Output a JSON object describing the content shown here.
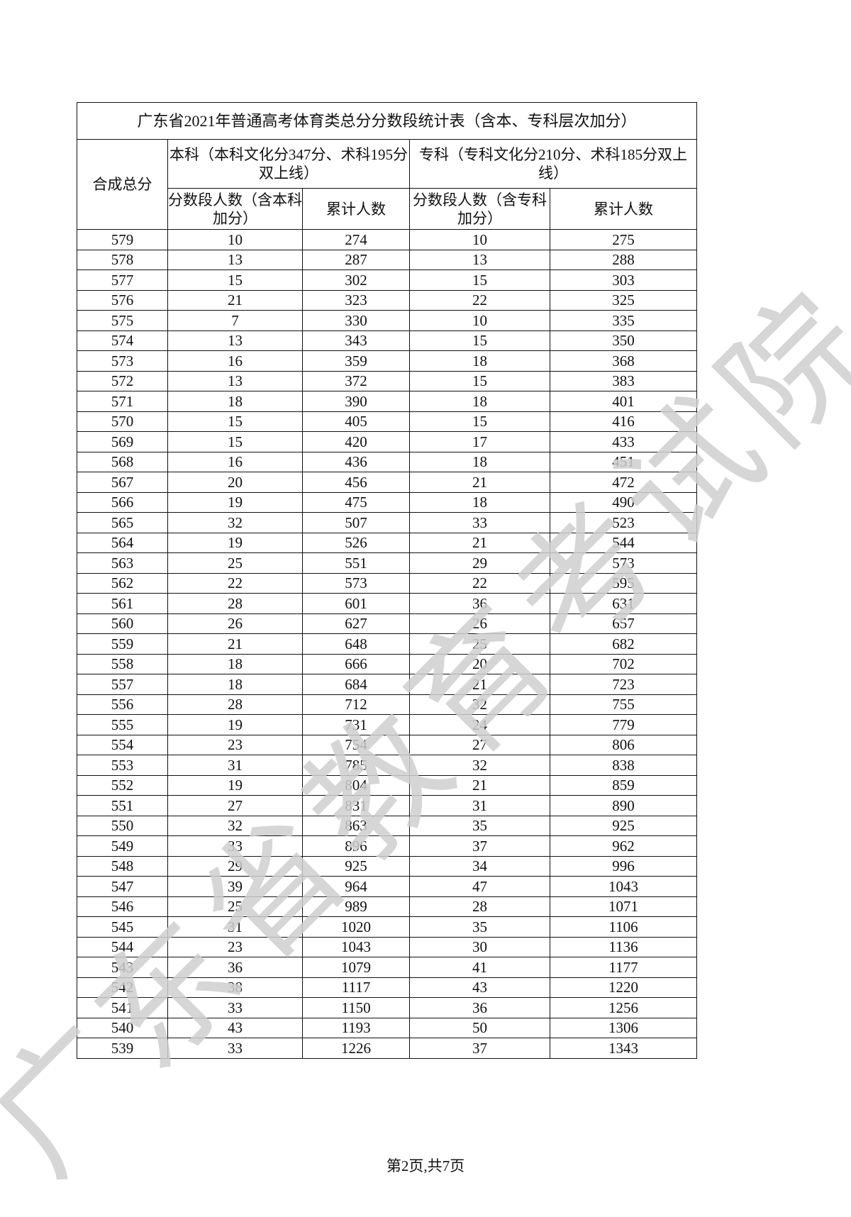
{
  "watermark": "广东省教育考试院",
  "table": {
    "title": "广东省2021年普通高考体育类总分分数段统计表（含本、专科层次加分）",
    "col_score": "合成总分",
    "group_benke": "本科（本科文化分347分、术科195分双上线）",
    "group_zhuanke": "专科（专科文化分210分、术科185分双上线）",
    "benke_count": "分数段人数（含本科加分）",
    "benke_cumulative": "累计人数",
    "zhuanke_count": "分数段人数（含专科加分）",
    "zhuanke_cumulative": "累计人数",
    "rows": [
      [
        579,
        10,
        274,
        10,
        275
      ],
      [
        578,
        13,
        287,
        13,
        288
      ],
      [
        577,
        15,
        302,
        15,
        303
      ],
      [
        576,
        21,
        323,
        22,
        325
      ],
      [
        575,
        7,
        330,
        10,
        335
      ],
      [
        574,
        13,
        343,
        15,
        350
      ],
      [
        573,
        16,
        359,
        18,
        368
      ],
      [
        572,
        13,
        372,
        15,
        383
      ],
      [
        571,
        18,
        390,
        18,
        401
      ],
      [
        570,
        15,
        405,
        15,
        416
      ],
      [
        569,
        15,
        420,
        17,
        433
      ],
      [
        568,
        16,
        436,
        18,
        451
      ],
      [
        567,
        20,
        456,
        21,
        472
      ],
      [
        566,
        19,
        475,
        18,
        490
      ],
      [
        565,
        32,
        507,
        33,
        523
      ],
      [
        564,
        19,
        526,
        21,
        544
      ],
      [
        563,
        25,
        551,
        29,
        573
      ],
      [
        562,
        22,
        573,
        22,
        595
      ],
      [
        561,
        28,
        601,
        36,
        631
      ],
      [
        560,
        26,
        627,
        26,
        657
      ],
      [
        559,
        21,
        648,
        25,
        682
      ],
      [
        558,
        18,
        666,
        20,
        702
      ],
      [
        557,
        18,
        684,
        21,
        723
      ],
      [
        556,
        28,
        712,
        32,
        755
      ],
      [
        555,
        19,
        731,
        24,
        779
      ],
      [
        554,
        23,
        754,
        27,
        806
      ],
      [
        553,
        31,
        785,
        32,
        838
      ],
      [
        552,
        19,
        804,
        21,
        859
      ],
      [
        551,
        27,
        831,
        31,
        890
      ],
      [
        550,
        32,
        863,
        35,
        925
      ],
      [
        549,
        33,
        896,
        37,
        962
      ],
      [
        548,
        29,
        925,
        34,
        996
      ],
      [
        547,
        39,
        964,
        47,
        1043
      ],
      [
        546,
        25,
        989,
        28,
        1071
      ],
      [
        545,
        31,
        1020,
        35,
        1106
      ],
      [
        544,
        23,
        1043,
        30,
        1136
      ],
      [
        543,
        36,
        1079,
        41,
        1177
      ],
      [
        542,
        38,
        1117,
        43,
        1220
      ],
      [
        541,
        33,
        1150,
        36,
        1256
      ],
      [
        540,
        43,
        1193,
        50,
        1306
      ],
      [
        539,
        33,
        1226,
        37,
        1343
      ]
    ]
  },
  "footer": "第2页,共7页"
}
